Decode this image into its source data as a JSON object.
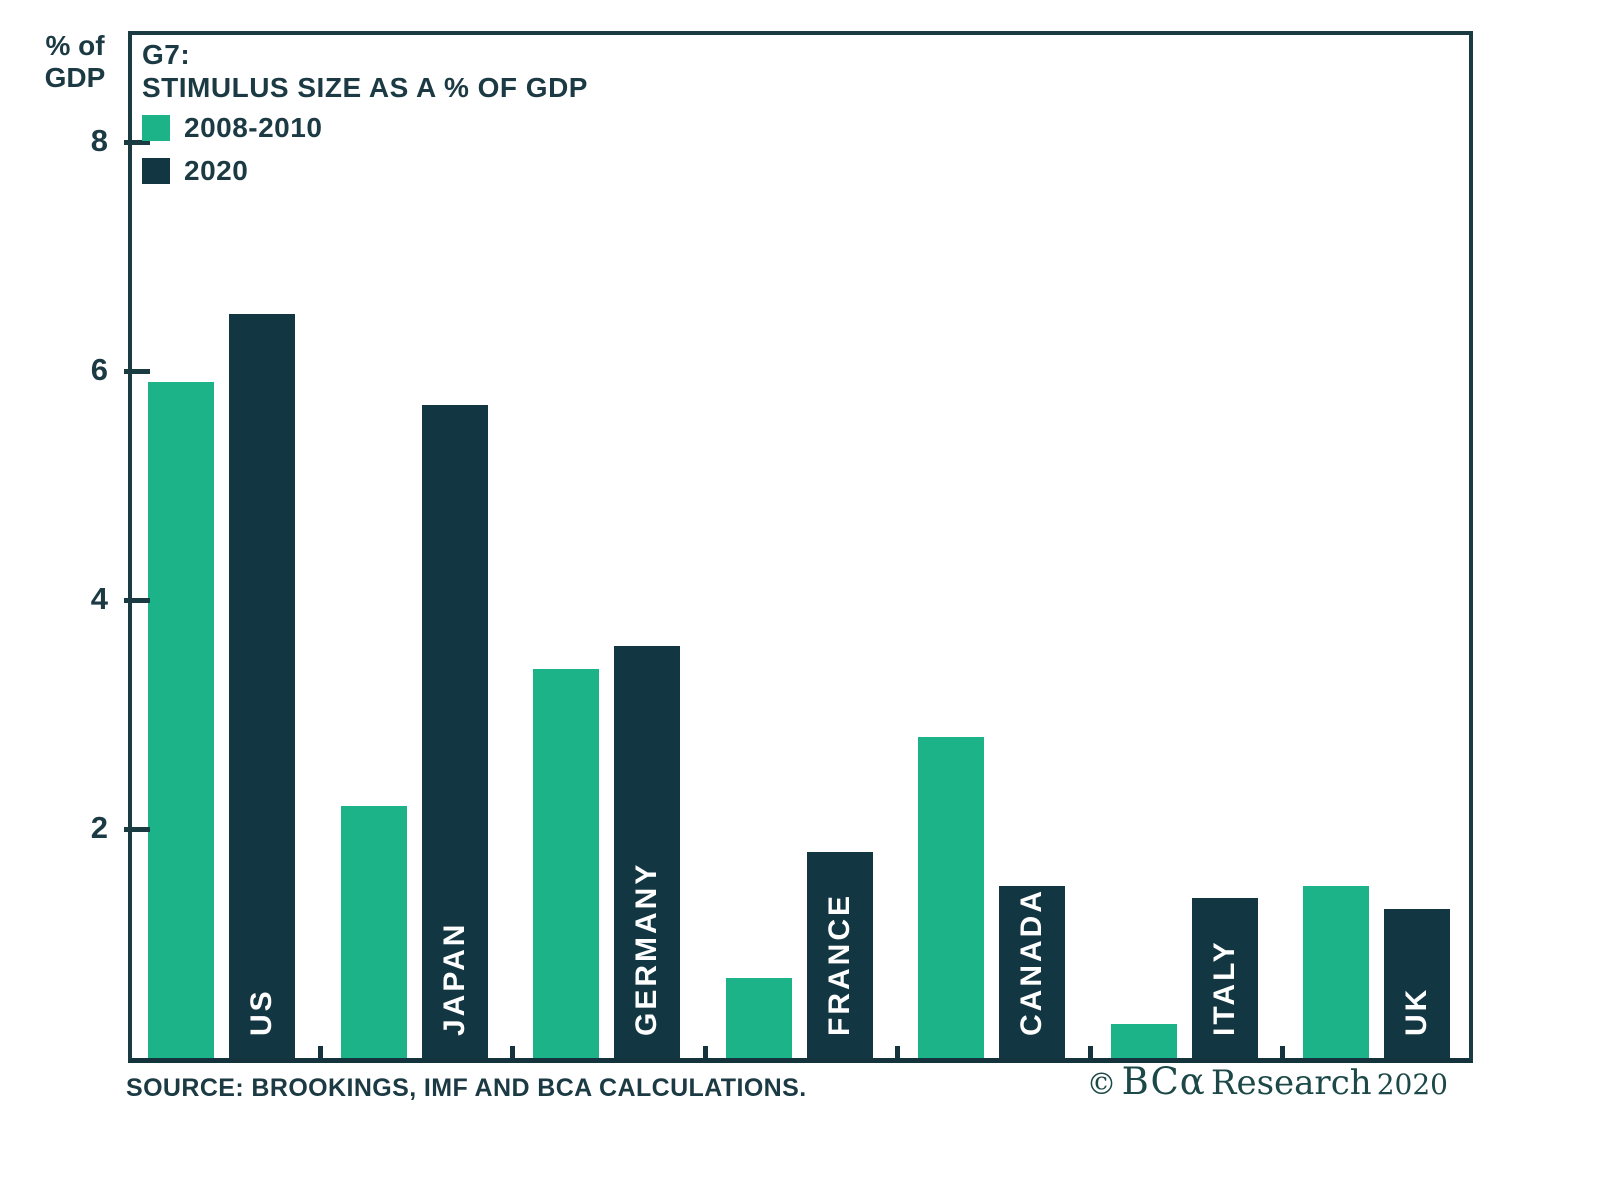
{
  "colors": {
    "series_2008_2010": "#1db389",
    "series_2020": "#133742",
    "axis": "#1b3b42",
    "text_dark": "#1c3a43",
    "credit_teal": "#1d4848",
    "background": "#ffffff",
    "bar_label_white": "#ffffff"
  },
  "title": {
    "line1": "G7:",
    "line2": "STIMULUS SIZE AS A % OF GDP"
  },
  "y_axis": {
    "title": "% of\nGDP"
  },
  "footer": {
    "source": "SOURCE: BROOKINGS, IMF AND BCA CALCULATIONS.",
    "credit_copyright": "©",
    "credit_brand": "BCα",
    "credit_name": "Research",
    "credit_year": "2020"
  },
  "chart_data": {
    "type": "bar",
    "title": "G7: STIMULUS SIZE AS A % OF GDP",
    "ylabel": "% of GDP",
    "xlabel": "",
    "categories": [
      "US",
      "JAPAN",
      "GERMANY",
      "FRANCE",
      "CANADA",
      "ITALY",
      "UK"
    ],
    "series": [
      {
        "name": "2008-2010",
        "color": "#1db389",
        "values": [
          5.9,
          2.2,
          3.4,
          0.7,
          2.8,
          0.3,
          1.5
        ]
      },
      {
        "name": "2020",
        "color": "#133742",
        "values": [
          6.5,
          5.7,
          3.6,
          1.8,
          1.5,
          1.4,
          1.3
        ]
      }
    ],
    "yticks": [
      2,
      4,
      6,
      8
    ],
    "ylim": [
      0,
      9
    ],
    "grid": false,
    "legend_position": "top-left-inside",
    "bar_labels": "category names shown vertically in white inside 2020 bars",
    "units": "% of GDP"
  }
}
